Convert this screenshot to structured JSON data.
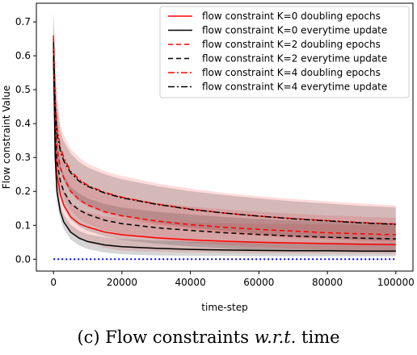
{
  "chart_data": {
    "type": "line",
    "xlabel": "time-step",
    "ylabel": "Flow constraint Value",
    "xlim": [
      -5000,
      105000
    ],
    "ylim": [
      -0.035,
      0.755
    ],
    "xticks": [
      0,
      20000,
      40000,
      60000,
      80000,
      100000
    ],
    "xtick_labels": [
      "0",
      "20000",
      "40000",
      "60000",
      "80000",
      "100000"
    ],
    "yticks": [
      0.0,
      0.1,
      0.2,
      0.3,
      0.4,
      0.5,
      0.6,
      0.7
    ],
    "ytick_labels": [
      "0.0",
      "0.1",
      "0.2",
      "0.3",
      "0.4",
      "0.5",
      "0.6",
      "0.7"
    ],
    "grid": false,
    "legend_position": "top-right",
    "x": [
      0,
      500,
      1000,
      2000,
      3000,
      5000,
      7500,
      10000,
      15000,
      20000,
      30000,
      40000,
      50000,
      60000,
      70000,
      80000,
      90000,
      100000
    ],
    "series": [
      {
        "name": "flow constraint K=0 doubling epochs",
        "color": "#ff0000",
        "dash": "solid",
        "values": [
          0.62,
          0.34,
          0.25,
          0.19,
          0.16,
          0.125,
          0.105,
          0.095,
          0.08,
          0.072,
          0.063,
          0.057,
          0.053,
          0.05,
          0.048,
          0.046,
          0.044,
          0.043
        ],
        "band": [
          0.035,
          0.06
        ]
      },
      {
        "name": "flow constraint K=0 everytime update",
        "color": "#000000",
        "dash": "solid",
        "values": [
          0.6,
          0.3,
          0.2,
          0.14,
          0.11,
          0.08,
          0.062,
          0.052,
          0.042,
          0.037,
          0.032,
          0.029,
          0.027,
          0.026,
          0.025,
          0.025,
          0.024,
          0.024
        ],
        "band": [
          0.02,
          0.025
        ]
      },
      {
        "name": "flow constraint K=2 doubling epochs",
        "color": "#ff0000",
        "dash": "dashed",
        "values": [
          0.65,
          0.41,
          0.33,
          0.27,
          0.24,
          0.2,
          0.175,
          0.16,
          0.14,
          0.128,
          0.113,
          0.102,
          0.094,
          0.088,
          0.083,
          0.078,
          0.075,
          0.072
        ],
        "band": [
          0.06,
          0.05
        ]
      },
      {
        "name": "flow constraint K=2 everytime update",
        "color": "#000000",
        "dash": "dashed",
        "values": [
          0.62,
          0.37,
          0.29,
          0.23,
          0.2,
          0.165,
          0.145,
          0.132,
          0.115,
          0.105,
          0.093,
          0.085,
          0.078,
          0.073,
          0.068,
          0.065,
          0.062,
          0.06
        ],
        "band": [
          0.05,
          0.045
        ]
      },
      {
        "name": "flow constraint K=4 doubling epochs",
        "color": "#ff0000",
        "dash": "dashdot",
        "values": [
          0.66,
          0.47,
          0.39,
          0.33,
          0.3,
          0.26,
          0.235,
          0.218,
          0.197,
          0.183,
          0.163,
          0.148,
          0.136,
          0.127,
          0.12,
          0.114,
          0.108,
          0.104
        ],
        "band": [
          0.07,
          0.055
        ]
      },
      {
        "name": "flow constraint K=4 everytime update",
        "color": "#000000",
        "dash": "dashdot",
        "values": [
          0.64,
          0.45,
          0.37,
          0.32,
          0.29,
          0.255,
          0.23,
          0.215,
          0.195,
          0.181,
          0.162,
          0.147,
          0.136,
          0.127,
          0.119,
          0.113,
          0.107,
          0.103
        ],
        "band": [
          0.06,
          0.05
        ]
      }
    ],
    "reference_line": {
      "y": 0.0,
      "color": "#0000ff",
      "style": "dotted",
      "x_range": [
        0,
        100000
      ]
    }
  },
  "caption": {
    "prefix": "(c) Flow constraints ",
    "italic": "w.r.t.",
    "suffix": " time"
  }
}
